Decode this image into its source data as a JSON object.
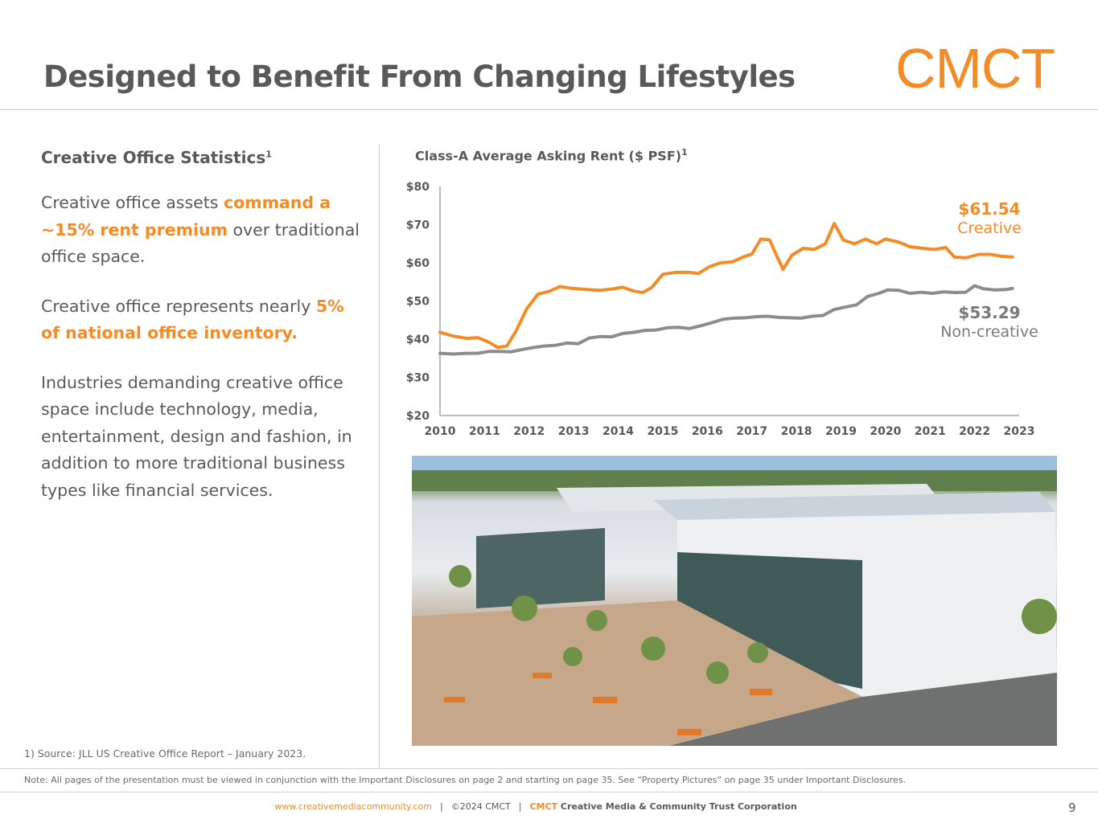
{
  "header": {
    "title": "Designed to Benefit From Changing Lifestyles",
    "logo": "CMCT"
  },
  "left_panel": {
    "heading": "Creative Office Statistics",
    "heading_sup": "1",
    "p1_pre": "Creative office assets ",
    "p1_hl": "command a ~15% rent premium",
    "p1_post": " over traditional office space.",
    "p2_pre": "Creative office represents nearly ",
    "p2_hl": "5% of national office inventory.",
    "p3": "Industries demanding creative office space include technology, media, entertainment, design and fashion, in addition to more traditional business types like financial services."
  },
  "chart_data": {
    "type": "line",
    "title": "Class-A Average Asking Rent ($ PSF)",
    "title_sup": "1",
    "xlabel": "",
    "ylabel": "",
    "xlim": [
      2010,
      2023
    ],
    "ylim": [
      20,
      80
    ],
    "yticks": [
      20,
      30,
      40,
      50,
      60,
      70,
      80
    ],
    "ytick_labels": [
      "$20",
      "$30",
      "$40",
      "$50",
      "$60",
      "$70",
      "$80"
    ],
    "xticks": [
      2010,
      2011,
      2012,
      2013,
      2014,
      2015,
      2016,
      2017,
      2018,
      2019,
      2020,
      2021,
      2022,
      2023
    ],
    "grid": false,
    "series": [
      {
        "key": "creative",
        "color": "#f28c28",
        "end_value_label": "$61.54",
        "end_name_label": "Creative",
        "points": [
          [
            2010,
            41.8
          ],
          [
            2010.3,
            40.8
          ],
          [
            2010.6,
            40.2
          ],
          [
            2010.85,
            40.4
          ],
          [
            2011.1,
            39.2
          ],
          [
            2011.3,
            37.8
          ],
          [
            2011.5,
            38.2
          ],
          [
            2011.7,
            42
          ],
          [
            2011.95,
            48
          ],
          [
            2012.2,
            51.8
          ],
          [
            2012.45,
            52.5
          ],
          [
            2012.7,
            53.8
          ],
          [
            2012.95,
            53.3
          ],
          [
            2013.3,
            53
          ],
          [
            2013.6,
            52.8
          ],
          [
            2013.9,
            53.2
          ],
          [
            2014.1,
            53.6
          ],
          [
            2014.35,
            52.6
          ],
          [
            2014.55,
            52.2
          ],
          [
            2014.75,
            53.5
          ],
          [
            2015,
            57
          ],
          [
            2015.3,
            57.5
          ],
          [
            2015.6,
            57.5
          ],
          [
            2015.8,
            57.2
          ],
          [
            2016.05,
            59
          ],
          [
            2016.3,
            60
          ],
          [
            2016.55,
            60.2
          ],
          [
            2016.8,
            61.5
          ],
          [
            2017,
            62.3
          ],
          [
            2017.2,
            66.2
          ],
          [
            2017.4,
            66
          ],
          [
            2017.55,
            62
          ],
          [
            2017.7,
            58.3
          ],
          [
            2017.9,
            62
          ],
          [
            2018.15,
            63.8
          ],
          [
            2018.4,
            63.5
          ],
          [
            2018.65,
            65
          ],
          [
            2018.85,
            70.3
          ],
          [
            2019.05,
            66
          ],
          [
            2019.3,
            65
          ],
          [
            2019.55,
            66.2
          ],
          [
            2019.8,
            65
          ],
          [
            2020,
            66.2
          ],
          [
            2020.3,
            65.4
          ],
          [
            2020.55,
            64.2
          ],
          [
            2020.85,
            63.8
          ],
          [
            2021.1,
            63.5
          ],
          [
            2021.35,
            64
          ],
          [
            2021.55,
            61.5
          ],
          [
            2021.8,
            61.3
          ],
          [
            2022.1,
            62.2
          ],
          [
            2022.35,
            62.2
          ],
          [
            2022.6,
            61.7
          ],
          [
            2022.85,
            61.54
          ]
        ]
      },
      {
        "key": "noncreative",
        "color": "#8c8c8c",
        "end_value_label": "$53.29",
        "end_name_label": "Non-creative",
        "points": [
          [
            2010,
            36.3
          ],
          [
            2010.3,
            36.1
          ],
          [
            2010.6,
            36.3
          ],
          [
            2010.85,
            36.3
          ],
          [
            2011.1,
            36.8
          ],
          [
            2011.35,
            36.8
          ],
          [
            2011.6,
            36.7
          ],
          [
            2011.85,
            37.3
          ],
          [
            2012.1,
            37.8
          ],
          [
            2012.35,
            38.2
          ],
          [
            2012.6,
            38.4
          ],
          [
            2012.85,
            39
          ],
          [
            2013.1,
            38.8
          ],
          [
            2013.35,
            40.3
          ],
          [
            2013.6,
            40.7
          ],
          [
            2013.85,
            40.6
          ],
          [
            2014.1,
            41.5
          ],
          [
            2014.35,
            41.8
          ],
          [
            2014.6,
            42.3
          ],
          [
            2014.85,
            42.4
          ],
          [
            2015.1,
            43
          ],
          [
            2015.35,
            43.1
          ],
          [
            2015.6,
            42.8
          ],
          [
            2015.85,
            43.5
          ],
          [
            2016.1,
            44.3
          ],
          [
            2016.35,
            45.2
          ],
          [
            2016.6,
            45.5
          ],
          [
            2016.85,
            45.6
          ],
          [
            2017.1,
            45.9
          ],
          [
            2017.35,
            46
          ],
          [
            2017.6,
            45.7
          ],
          [
            2017.85,
            45.6
          ],
          [
            2018.1,
            45.5
          ],
          [
            2018.35,
            46
          ],
          [
            2018.6,
            46.2
          ],
          [
            2018.85,
            47.8
          ],
          [
            2019.1,
            48.4
          ],
          [
            2019.35,
            49
          ],
          [
            2019.6,
            51.2
          ],
          [
            2019.85,
            52
          ],
          [
            2020.05,
            52.9
          ],
          [
            2020.3,
            52.8
          ],
          [
            2020.55,
            52
          ],
          [
            2020.8,
            52.3
          ],
          [
            2021.05,
            52
          ],
          [
            2021.3,
            52.4
          ],
          [
            2021.55,
            52.2
          ],
          [
            2021.8,
            52.3
          ],
          [
            2022,
            54
          ],
          [
            2022.2,
            53.2
          ],
          [
            2022.45,
            52.9
          ],
          [
            2022.7,
            53
          ],
          [
            2022.85,
            53.29
          ]
        ]
      }
    ]
  },
  "photo": {
    "icon": "building-courtyard-photo"
  },
  "footnote": "1) Source: JLL US Creative Office Report – January 2023.",
  "note": "Note: All pages of the presentation must be viewed in conjunction with the Important Disclosures on page 2 and starting on page 35. See “Property Pictures” on page 35 under Important Disclosures.",
  "footer": {
    "url": "www.creativemediacommunity.com",
    "separator": "|",
    "copyright": "©2024 CMCT",
    "brand": "CMCT",
    "corp": " Creative Media & Community Trust Corporation"
  },
  "page_number": "9"
}
